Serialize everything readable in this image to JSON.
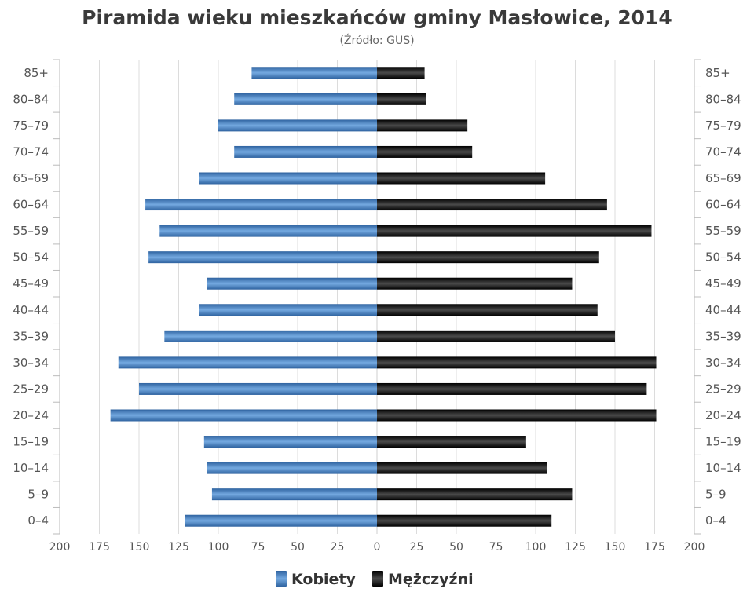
{
  "chart_data": {
    "type": "bar",
    "orientation": "horizontal",
    "title": "Piramida wieku mieszkańców gminy Masłowice, 2014",
    "subtitle": "(Źródło: GUS)",
    "categories": [
      "0–4",
      "5–9",
      "10–14",
      "15–19",
      "20–24",
      "25–29",
      "30–34",
      "35–39",
      "40–44",
      "45–49",
      "50–54",
      "55–59",
      "60–64",
      "65–69",
      "70–74",
      "75–79",
      "80–84",
      "85+"
    ],
    "series": [
      {
        "name": "Kobiety",
        "color": "#4a86c5",
        "values": [
          121,
          104,
          107,
          109,
          168,
          150,
          163,
          134,
          112,
          107,
          144,
          137,
          146,
          112,
          90,
          100,
          90,
          79
        ]
      },
      {
        "name": "Mężczyźni",
        "color": "#1a1a1a",
        "values": [
          110,
          123,
          107,
          94,
          176,
          170,
          176,
          150,
          139,
          123,
          140,
          173,
          145,
          106,
          60,
          57,
          31,
          30
        ]
      }
    ],
    "x_ticks": [
      "200",
      "175",
      "150",
      "125",
      "100",
      "75",
      "50",
      "25",
      "0",
      "25",
      "50",
      "75",
      "100",
      "125",
      "150",
      "175",
      "200"
    ],
    "xlim": [
      -200,
      200
    ],
    "grid": true,
    "legend_position": "bottom"
  }
}
